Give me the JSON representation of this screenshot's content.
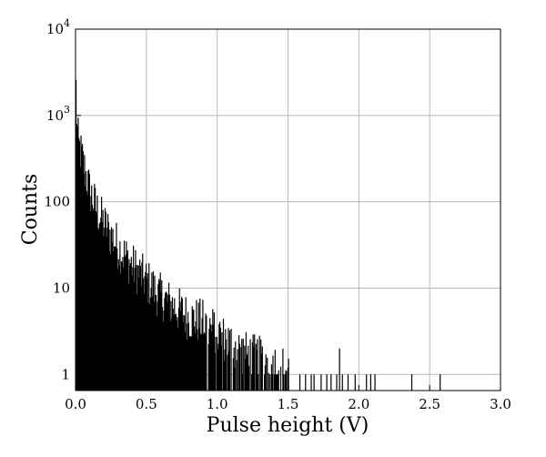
{
  "chart_data": {
    "type": "bar",
    "title": "",
    "xlabel": "Pulse height (V)",
    "ylabel": "Counts",
    "xlim": [
      0,
      3.0
    ],
    "ylim": [
      0.65,
      10000
    ],
    "yscale": "log",
    "grid": true,
    "bar_color": "#000000",
    "bin_width": 0.005,
    "x_ticks": [
      {
        "value": 0,
        "label": "0.0"
      },
      {
        "value": 0.5,
        "label": "0.5"
      },
      {
        "value": 1.0,
        "label": "1.0"
      },
      {
        "value": 1.5,
        "label": "1.5"
      },
      {
        "value": 2.0,
        "label": "2.0"
      },
      {
        "value": 2.5,
        "label": "2.5"
      },
      {
        "value": 3.0,
        "label": "3.0"
      }
    ],
    "y_ticks": [
      {
        "value": 1,
        "base": "1",
        "exp": ""
      },
      {
        "value": 10,
        "base": "10",
        "exp": ""
      },
      {
        "value": 100,
        "base": "100",
        "exp": ""
      },
      {
        "value": 1000,
        "base": "10",
        "exp": "3"
      },
      {
        "value": 10000,
        "base": "10",
        "exp": "4"
      }
    ],
    "envelope": [
      [
        0.0,
        3000
      ],
      [
        0.005,
        1500
      ],
      [
        0.01,
        700
      ],
      [
        0.02,
        450
      ],
      [
        0.04,
        350
      ],
      [
        0.06,
        250
      ],
      [
        0.08,
        180
      ],
      [
        0.1,
        130
      ],
      [
        0.15,
        80
      ],
      [
        0.2,
        55
      ],
      [
        0.3,
        30
      ],
      [
        0.4,
        18
      ],
      [
        0.5,
        12
      ],
      [
        0.6,
        8
      ],
      [
        0.7,
        6
      ],
      [
        0.8,
        4.5
      ],
      [
        0.9,
        4
      ],
      [
        1.0,
        3
      ],
      [
        1.1,
        2.2
      ],
      [
        1.2,
        1.7
      ],
      [
        1.3,
        1.5
      ],
      [
        1.4,
        1.3
      ],
      [
        1.5,
        1.1
      ]
    ],
    "isolated_bins": [
      {
        "x": 1.58,
        "y": 1
      },
      {
        "x": 1.62,
        "y": 1
      },
      {
        "x": 1.66,
        "y": 1
      },
      {
        "x": 1.68,
        "y": 1
      },
      {
        "x": 1.73,
        "y": 1
      },
      {
        "x": 1.77,
        "y": 1
      },
      {
        "x": 1.8,
        "y": 1
      },
      {
        "x": 1.84,
        "y": 1
      },
      {
        "x": 1.86,
        "y": 2
      },
      {
        "x": 1.88,
        "y": 1
      },
      {
        "x": 1.92,
        "y": 1
      },
      {
        "x": 1.97,
        "y": 1
      },
      {
        "x": 2.05,
        "y": 1
      },
      {
        "x": 2.08,
        "y": 1
      },
      {
        "x": 2.11,
        "y": 1
      },
      {
        "x": 2.37,
        "y": 1
      },
      {
        "x": 2.57,
        "y": 1
      }
    ]
  }
}
